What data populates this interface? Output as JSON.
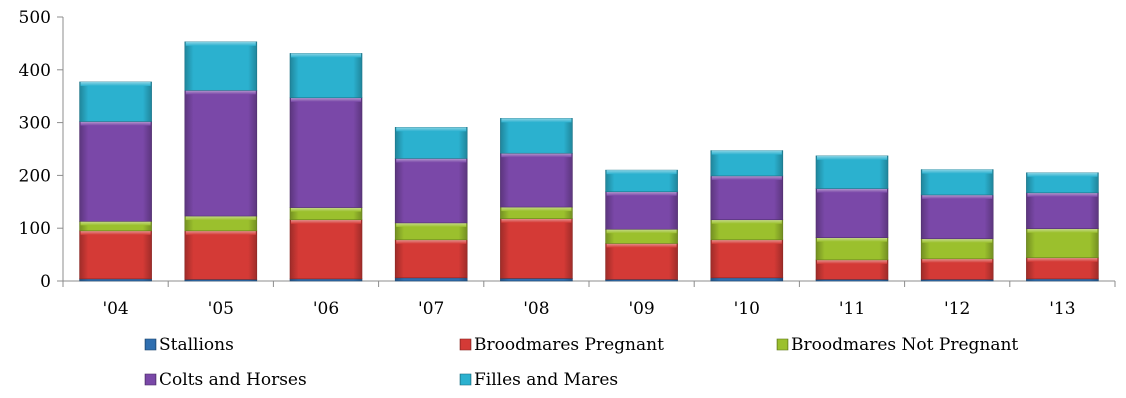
{
  "chart_data": {
    "type": "bar",
    "stacked": true,
    "title": "",
    "xlabel": "",
    "ylabel": "",
    "categories": [
      "'04",
      "'05",
      "'06",
      "'07",
      "'08",
      "'09",
      "'10",
      "'11",
      "'12",
      "'13"
    ],
    "ylim": [
      0,
      500
    ],
    "yticks": [
      0,
      100,
      200,
      300,
      400,
      500
    ],
    "grid": false,
    "legend_position": "bottom",
    "series": [
      {
        "name": "Stallions",
        "color": "#2f6fb0",
        "values": [
          4,
          3,
          4,
          6,
          5,
          3,
          6,
          3,
          3,
          4
        ]
      },
      {
        "name": "Broodmares Pregnant",
        "color": "#d43a36",
        "values": [
          91,
          92,
          112,
          72,
          113,
          68,
          72,
          37,
          39,
          40
        ]
      },
      {
        "name": "Broodmares Not Pregnant",
        "color": "#9bc02d",
        "values": [
          18,
          28,
          23,
          32,
          22,
          27,
          38,
          42,
          38,
          55
        ]
      },
      {
        "name": "Colts and Horses",
        "color": "#7a48a8",
        "values": [
          189,
          238,
          208,
          122,
          102,
          71,
          83,
          93,
          83,
          68
        ]
      },
      {
        "name": "Filles and Mares",
        "color": "#2bb1cf",
        "values": [
          75,
          92,
          84,
          59,
          66,
          41,
          48,
          62,
          48,
          38
        ]
      }
    ]
  }
}
